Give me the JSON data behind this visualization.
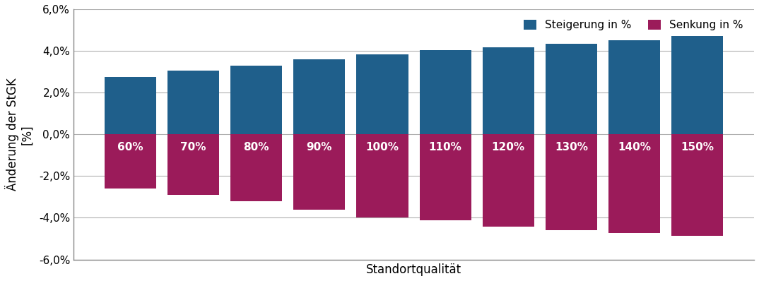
{
  "categories": [
    "60%",
    "70%",
    "80%",
    "90%",
    "100%",
    "110%",
    "120%",
    "130%",
    "140%",
    "150%"
  ],
  "steigerung": [
    2.75,
    3.05,
    3.28,
    3.58,
    3.82,
    4.05,
    4.18,
    4.35,
    4.52,
    4.72
  ],
  "senkung": [
    -2.6,
    -2.9,
    -3.2,
    -3.6,
    -4.0,
    -4.12,
    -4.42,
    -4.58,
    -4.72,
    -4.85
  ],
  "color_steigerung": "#1F5F8B",
  "color_senkung": "#9B1B5A",
  "xlabel": "Standortqualität",
  "ylabel": "Änderung der StGK\n[%]",
  "ylim": [
    -6.0,
    6.0
  ],
  "yticks": [
    -6.0,
    -4.0,
    -2.0,
    0.0,
    2.0,
    4.0,
    6.0
  ],
  "legend_steigerung": "Steigerung in %",
  "legend_senkung": "Senkung in %",
  "background_color": "#ffffff",
  "grid_color": "#b0b0b0",
  "bar_width": 0.82,
  "label_fontsize": 12,
  "tick_fontsize": 11,
  "legend_fontsize": 11,
  "bar_label_fontsize": 11,
  "spine_color": "#888888"
}
